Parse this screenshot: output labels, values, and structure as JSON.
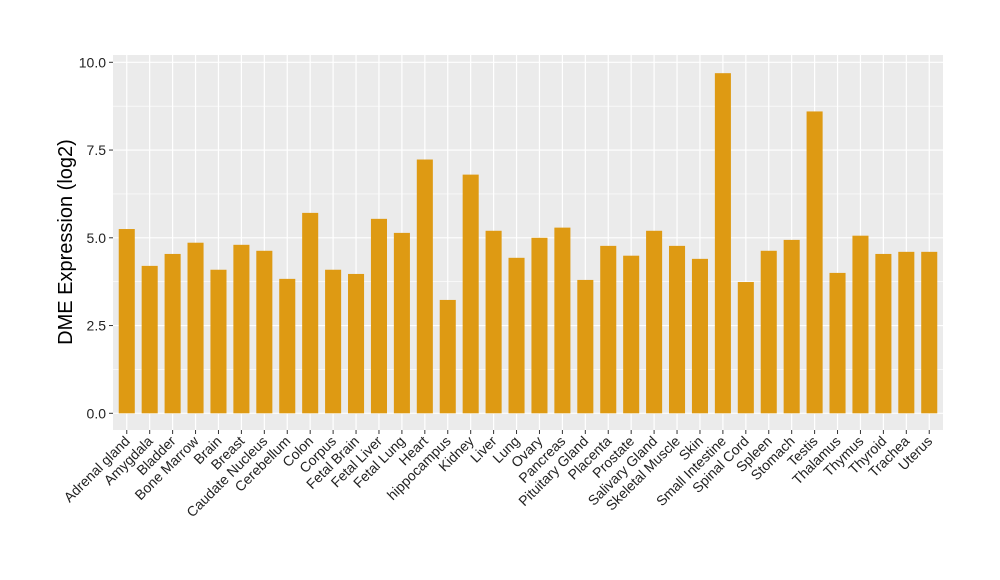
{
  "chart_data": {
    "type": "bar",
    "title": "",
    "xlabel": "",
    "ylabel": "DME Expression (log2)",
    "ylim": [
      -0.45,
      10.25
    ],
    "yticks": [
      0,
      2.5,
      5,
      7.5,
      10
    ],
    "ytick_labels": [
      "0.0",
      "2.5",
      "5.0",
      "7.5",
      "10.0"
    ],
    "grid": true,
    "bar_color": "#DE9A13",
    "panel_color": "#EBEBEB",
    "categories": [
      "Adrenal gland",
      "Amygdala",
      "Bladder",
      "Bone Marrow",
      "Brain",
      "Breast",
      "Caudate Nucleus",
      "Cerebellum",
      "Colon",
      "Corpus",
      "Fetal Brain",
      "Fetal Liver",
      "Fetal Lung",
      "Heart",
      "hippocampus",
      "Kidney",
      "Liver",
      "Lung",
      "Ovary",
      "Pancreas",
      "Pituitary Gland",
      "Placenta",
      "Prostate",
      "Salivary Gland",
      "Skeletal Muscle",
      "Skin",
      "Small Intestine",
      "Spinal Cord",
      "Spleen",
      "Stomach",
      "Testis",
      "Thalamus",
      "Thymus",
      "Thyroid",
      "Trachea",
      "Uterus"
    ],
    "values": [
      5.25,
      4.2,
      4.54,
      4.86,
      4.09,
      4.8,
      4.63,
      3.83,
      5.71,
      4.09,
      3.97,
      5.54,
      5.14,
      7.23,
      3.23,
      6.8,
      5.2,
      4.43,
      5.0,
      5.29,
      3.8,
      4.77,
      4.49,
      5.2,
      4.77,
      4.4,
      9.69,
      3.74,
      4.63,
      4.94,
      8.6,
      4.0,
      5.06,
      4.54,
      4.6,
      4.6
    ]
  }
}
